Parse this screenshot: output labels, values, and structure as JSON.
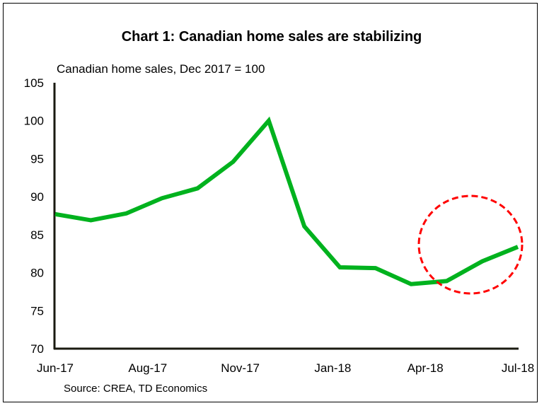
{
  "chart_data": {
    "type": "line",
    "title": "Chart 1: Canadian home sales are stabilizing",
    "subtitle": "Canadian home sales, Dec 2017 = 100",
    "source": "Source: CREA, TD Economics",
    "x": [
      "Jun-17",
      "Jul-17",
      "Aug-17",
      "Sep-17",
      "Oct-17",
      "Nov-17",
      "Dec-17",
      "Jan-18",
      "Feb-18",
      "Mar-18",
      "Apr-18",
      "May-18",
      "Jun-18",
      "Jul-18"
    ],
    "x_tick_labels": [
      "Jun-17",
      "Aug-17",
      "Nov-17",
      "Jan-18",
      "Apr-18",
      "Jul-18"
    ],
    "series": [
      {
        "values": [
          87.7,
          86.9,
          87.8,
          89.8,
          91.1,
          94.6,
          100.0,
          86.1,
          80.7,
          80.6,
          78.5,
          78.9,
          81.5,
          83.4
        ],
        "color": "#00b21e"
      }
    ],
    "ylim": [
      70,
      105
    ],
    "y_ticks": [
      70,
      75,
      80,
      85,
      90,
      95,
      100,
      105
    ],
    "grid": false,
    "legend": "none",
    "annotation": {
      "type": "dashed-ellipse",
      "color": "#ff0000",
      "highlights": [
        "May-18",
        "Jun-18",
        "Jul-18"
      ]
    }
  }
}
